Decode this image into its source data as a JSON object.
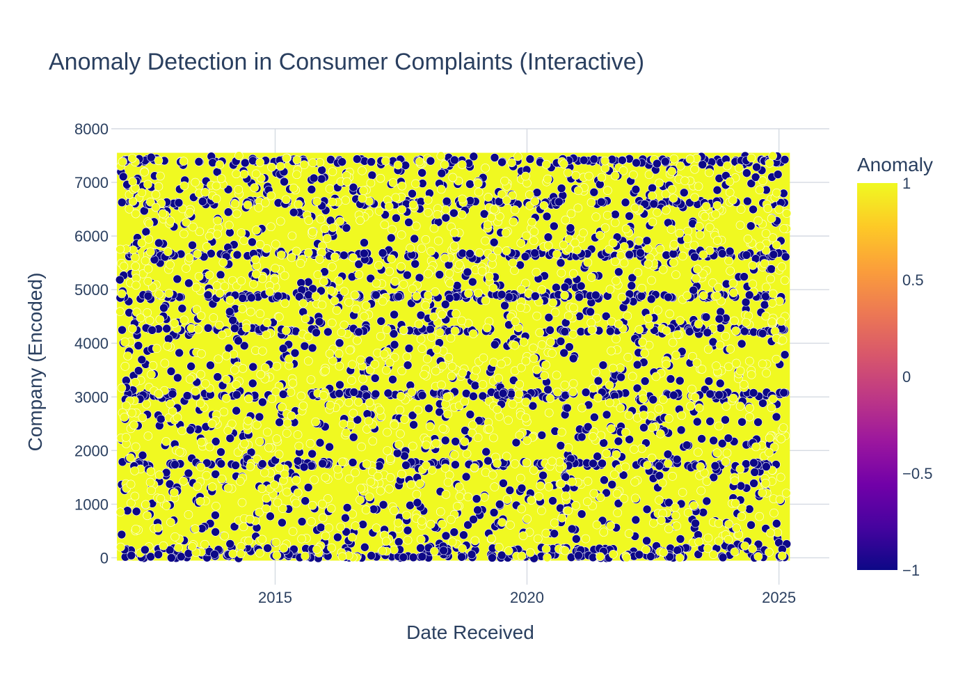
{
  "chart_data": {
    "type": "scatter",
    "title": "Anomaly Detection in Consumer Complaints (Interactive)",
    "xlabel": "Date Received",
    "ylabel": "Company (Encoded)",
    "x_tick_labels": [
      "2015",
      "2020",
      "2025"
    ],
    "x_tick_values": [
      "2015-01-01",
      "2020-01-01",
      "2025-01-01"
    ],
    "xlim": [
      "2011-10-01",
      "2026-01-01"
    ],
    "x_data_range": [
      "2011-12-01",
      "2025-03-01"
    ],
    "y_tick_labels": [
      "0",
      "1000",
      "2000",
      "3000",
      "4000",
      "5000",
      "6000",
      "7000",
      "8000"
    ],
    "y_tick_values": [
      0,
      1000,
      2000,
      3000,
      4000,
      5000,
      6000,
      7000,
      8000
    ],
    "ylim": [
      -500,
      8000
    ],
    "y_data_range": [
      0,
      7500
    ],
    "grid": true,
    "colorbar": {
      "title": "Anomaly",
      "tick_labels": [
        "1",
        "0.5",
        "0",
        "−0.5",
        "−1"
      ],
      "tick_values": [
        1,
        0.5,
        0,
        -0.5,
        -1
      ],
      "range": [
        -1,
        1
      ],
      "colorscale": "Plasma",
      "colors": [
        "#0d0887",
        "#46039f",
        "#7201a8",
        "#9c179e",
        "#bd3786",
        "#d8576b",
        "#ed7953",
        "#fb9f3a",
        "#fdca26",
        "#f0f921"
      ]
    },
    "series": [
      {
        "color": "#f0f921",
        "value": 1,
        "points": [
          [
            "2012-03-01",
            7450
          ],
          [
            "2013-06-01",
            7000
          ],
          [
            "2014-02-01",
            6200
          ],
          [
            "2015-05-01",
            5600
          ],
          [
            "2016-08-01",
            4900
          ],
          [
            "2017-03-01",
            3800
          ],
          [
            "2018-06-01",
            3000
          ],
          [
            "2019-04-01",
            2400
          ],
          [
            "2020-07-01",
            1800
          ],
          [
            "2021-05-01",
            1200
          ],
          [
            "2022-09-01",
            700
          ],
          [
            "2023-06-01",
            300
          ],
          [
            "2024-04-01",
            6500
          ],
          [
            "2024-11-01",
            5200
          ],
          [
            "2013-10-01",
            2500
          ],
          [
            "2016-01-01",
            1500
          ]
        ]
      },
      {
        "color": "#0d0887",
        "value": -1,
        "points": [
          [
            "2012-06-01",
            150
          ],
          [
            "2013-02-01",
            6620
          ],
          [
            "2013-09-01",
            4900
          ],
          [
            "2014-04-01",
            5650
          ],
          [
            "2015-03-01",
            3050
          ],
          [
            "2016-06-01",
            6150
          ],
          [
            "2017-01-01",
            4900
          ],
          [
            "2018-02-01",
            7400
          ],
          [
            "2019-01-01",
            1100
          ],
          [
            "2020-03-01",
            4880
          ],
          [
            "2021-06-01",
            3300
          ],
          [
            "2022-08-01",
            7350
          ],
          [
            "2023-08-01",
            4200
          ],
          [
            "2024-06-01",
            4900
          ],
          [
            "2024-10-01",
            1700
          ],
          [
            "2014-10-01",
            1750
          ]
        ]
      }
    ]
  }
}
